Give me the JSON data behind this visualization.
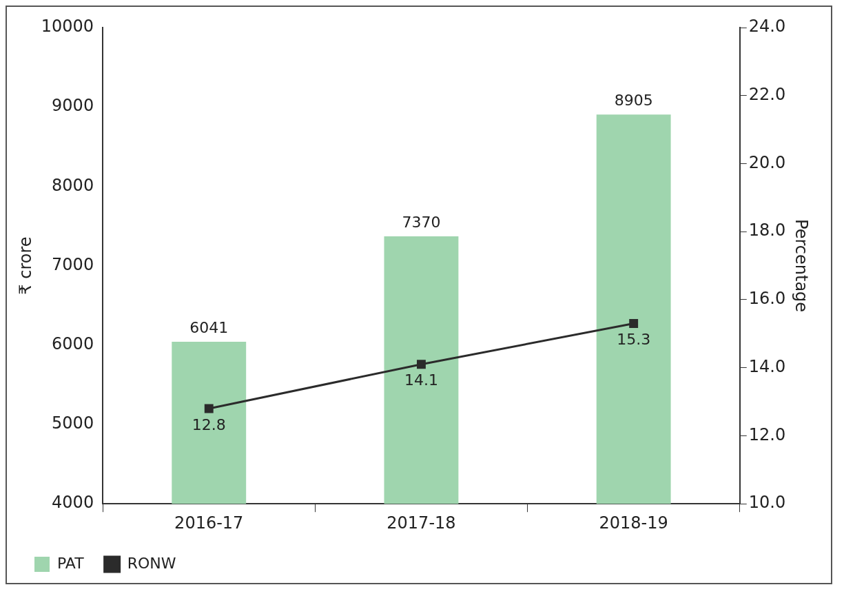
{
  "chart_data": {
    "type": "bar",
    "categories": [
      "2016-17",
      "2017-18",
      "2018-19"
    ],
    "series": [
      {
        "name": "PAT",
        "color": "#9fd5ae",
        "values": [
          6041,
          7370,
          8905
        ]
      },
      {
        "name": "RONW",
        "type": "line",
        "axis": "y2",
        "color": "#2b2b2b",
        "values": [
          12.8,
          14.1,
          15.3
        ]
      }
    ],
    "ylabel": "₹ crore",
    "y2label": "Percentage",
    "ylim": [
      4000,
      10000
    ],
    "yticks": [
      4000,
      5000,
      6000,
      7000,
      8000,
      9000,
      10000
    ],
    "y2lim": [
      10,
      24
    ],
    "y2ticks": [
      {
        "value": 10,
        "label": "10.0"
      },
      {
        "value": 12,
        "label": "12.0"
      },
      {
        "value": 14,
        "label": "14.0"
      },
      {
        "value": 16,
        "label": "16.0"
      },
      {
        "value": 18,
        "label": "18.0"
      },
      {
        "value": 20,
        "label": "20.0"
      },
      {
        "value": 22,
        "label": "22.0"
      },
      {
        "value": 24,
        "label": "24.0"
      }
    ],
    "data_labels": true,
    "grid": false,
    "legend": "bottom left",
    "marker": "square",
    "line_style": "solid"
  }
}
